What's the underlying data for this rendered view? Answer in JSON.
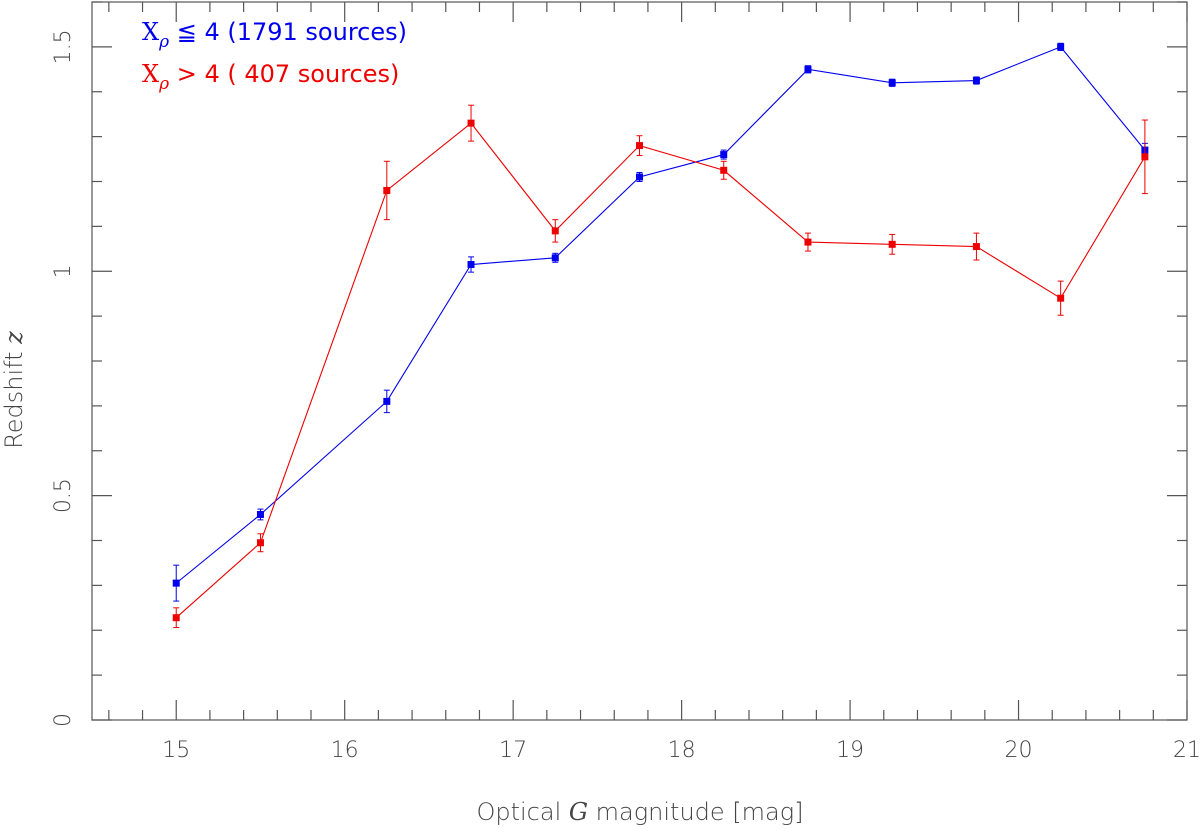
{
  "chart_data": {
    "type": "line",
    "x": [
      15,
      15.5,
      16.25,
      16.75,
      17.25,
      17.75,
      18.25,
      18.75,
      19.25,
      19.75,
      20.25,
      20.75
    ],
    "xlabel_parts": [
      "Optical ",
      "G",
      " magnitude [mag]"
    ],
    "ylabel_parts": [
      "Redshift ",
      "z"
    ],
    "xlim": [
      14.5,
      21
    ],
    "ylim": [
      0,
      1.6
    ],
    "xticks": [
      "15",
      "16",
      "17",
      "18",
      "19",
      "20",
      "21"
    ],
    "yticks": [
      "0",
      "0.5",
      "1",
      "1.5"
    ],
    "grid": false,
    "legend_position": "top-left",
    "series": [
      {
        "legend_parts": [
          "X",
          "ρ",
          " ≦ 4 (1791 sources)"
        ],
        "color": "#0000ee",
        "values": [
          0.305,
          0.458,
          0.71,
          1.015,
          1.03,
          1.21,
          1.26,
          1.45,
          1.42,
          1.425,
          1.5,
          1.27
        ],
        "errors": [
          0.04,
          0.012,
          0.025,
          0.017,
          0.01,
          0.01,
          0.01,
          0.008,
          0.008,
          0.008,
          0.008,
          0.015
        ]
      },
      {
        "legend_parts": [
          "X",
          "ρ",
          " > 4 ( 407 sources)"
        ],
        "color": "#ee0000",
        "values": [
          0.228,
          0.395,
          1.18,
          1.33,
          1.09,
          1.28,
          1.225,
          1.065,
          1.06,
          1.055,
          0.94,
          1.255
        ],
        "errors": [
          0.022,
          0.02,
          0.065,
          0.04,
          0.025,
          0.022,
          0.02,
          0.02,
          0.022,
          0.03,
          0.038,
          0.082
        ]
      }
    ]
  }
}
